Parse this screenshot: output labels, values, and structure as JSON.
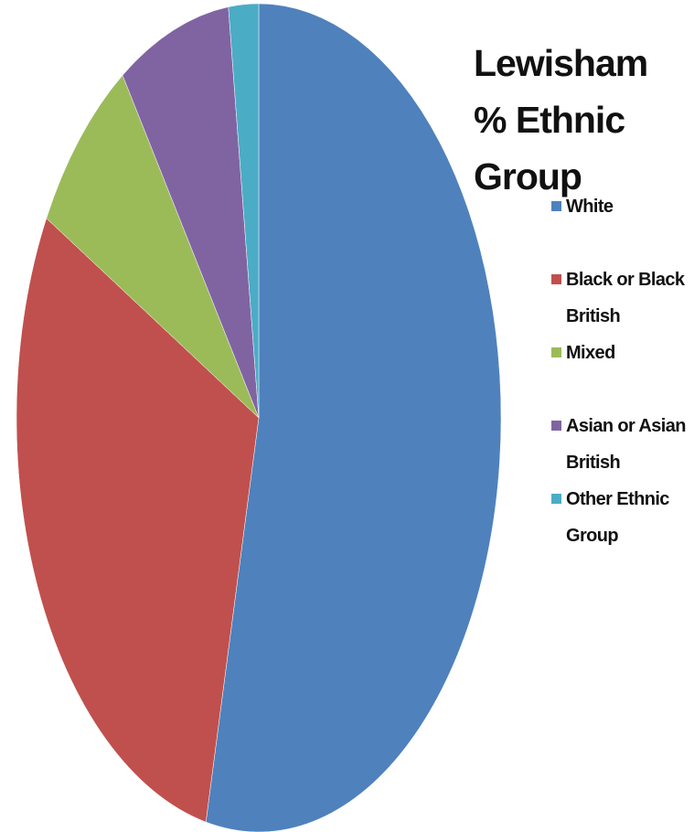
{
  "chart_data": {
    "type": "pie",
    "title": "Lewisham % Ethnic Group",
    "categories": [
      "White",
      "Black or Black British",
      "Mixed",
      "Asian or Asian British",
      "Other Ethnic Group"
    ],
    "values": [
      53.5,
      29.5,
      7.5,
      7.5,
      2.0
    ],
    "colors": [
      "#4F81BD",
      "#C0504D",
      "#9BBB59",
      "#8064A2",
      "#4BACC6"
    ],
    "legend_position": "right",
    "start_angle": "12 o'clock",
    "direction": "clockwise"
  }
}
